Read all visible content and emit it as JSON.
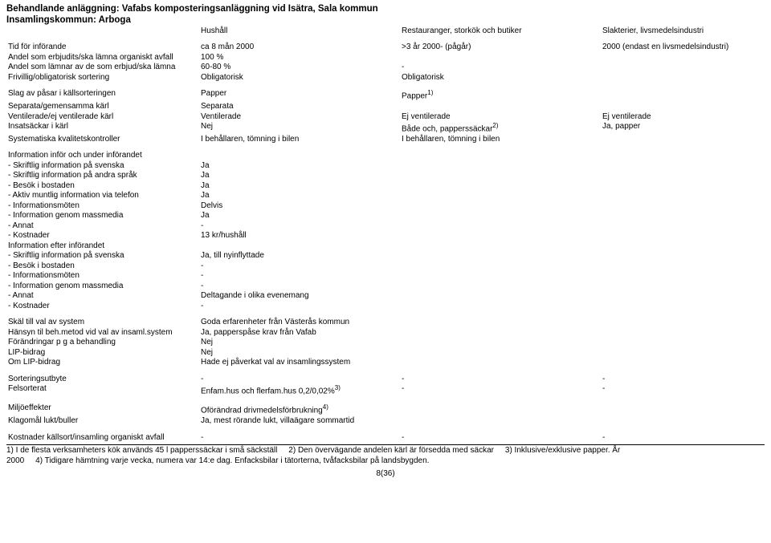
{
  "header": {
    "facility_line": "Behandlande anläggning: Vafabs komposteringsanläggning vid Isätra, Sala kommun",
    "municipality_line": "Insamlingskommun: Arboga"
  },
  "colheads": {
    "hh": "Hushåll",
    "rest": "Restauranger, storkök och butiker",
    "slak": "Slakterier, livsmedelsindustri"
  },
  "block1": {
    "r0": {
      "label": "Tid för införande",
      "hh": "ca 8 mån   2000",
      "rest": ">3 år   2000- (pågår)",
      "slak": "2000 (endast en livsmedelsindustri)"
    },
    "r1": {
      "label": "Andel som erbjudits/ska lämna organiskt avfall",
      "hh": "100 %",
      "rest": "",
      "slak": ""
    },
    "r2": {
      "label": "Andel som lämnar av de som erbjud/ska lämna",
      "hh": "60-80 %",
      "rest": "-",
      "slak": ""
    },
    "r3": {
      "label": "Frivillig/obligatorisk sortering",
      "hh": "Obligatorisk",
      "rest": "Obligatorisk",
      "slak": ""
    }
  },
  "block2": {
    "r0": {
      "label": "Slag av påsar i källsorteringen",
      "hh": "Papper",
      "rest_pre": "Papper",
      "rest_sup": "1)",
      "slak": ""
    },
    "r1": {
      "label": "Separata/gemensamma kärl",
      "hh": "Separata",
      "rest": "",
      "slak": ""
    },
    "r2": {
      "label": "Ventilerade/ej ventilerade kärl",
      "hh": "Ventilerade",
      "rest": "Ej ventilerade",
      "slak": "Ej ventilerade"
    },
    "r3": {
      "label": "Insatsäckar i kärl",
      "hh": "Nej",
      "rest_pre": "Både och, papperssäckar",
      "rest_sup": "2)",
      "slak": "Ja, papper"
    },
    "r4": {
      "label": "Systematiska kvalitetskontroller",
      "hh": "I behållaren, tömning i bilen",
      "rest": "I behållaren, tömning i bilen",
      "slak": ""
    }
  },
  "block3": {
    "title": "Information inför och under införandet",
    "rows": {
      "r0": {
        "label": "- Skriftlig information på svenska",
        "hh": "Ja"
      },
      "r1": {
        "label": "- Skriftlig information på andra språk",
        "hh": "Ja"
      },
      "r2": {
        "label": "- Besök i bostaden",
        "hh": "Ja"
      },
      "r3": {
        "label": "- Aktiv muntlig information via telefon",
        "hh": "Ja"
      },
      "r4": {
        "label": "- Informationsmöten",
        "hh": "Delvis"
      },
      "r5": {
        "label": "- Information genom massmedia",
        "hh": "Ja"
      },
      "r6": {
        "label": "- Annat",
        "hh": "-"
      },
      "r7": {
        "label": "- Kostnader",
        "hh": "13 kr/hushåll"
      }
    },
    "after_title": "Information efter införandet",
    "after": {
      "r0": {
        "label": "- Skriftlig information på svenska",
        "hh": "Ja, till nyinflyttade"
      },
      "r1": {
        "label": "- Besök i bostaden",
        "hh": "-"
      },
      "r2": {
        "label": "- Informationsmöten",
        "hh": "-"
      },
      "r3": {
        "label": "- Information genom massmedia",
        "hh": "-"
      },
      "r4": {
        "label": "- Annat",
        "hh": "Deltagande i olika evenemang"
      },
      "r5": {
        "label": "- Kostnader",
        "hh": "-"
      }
    }
  },
  "block4": {
    "r0": {
      "label": "Skäl till val av system",
      "hh": "Goda erfarenheter från Västerås kommun"
    },
    "r1": {
      "label": "Hänsyn til beh.metod vid val av insaml.system",
      "hh": "Ja, papperspåse krav från Vafab"
    },
    "r2": {
      "label": "Förändringar p g a behandling",
      "hh": "Nej"
    },
    "r3": {
      "label": "LIP-bidrag",
      "hh": "Nej"
    },
    "r4": {
      "label": "Om LIP-bidrag",
      "hh": "Hade ej påverkat val av insamlingssystem"
    }
  },
  "block5": {
    "r0": {
      "label": "Sorteringsutbyte",
      "hh": "-",
      "rest": "-",
      "slak": "-"
    },
    "r1": {
      "label": "Felsorterat",
      "hh_pre": "Enfam.hus och flerfam.hus 0,2/0,02%",
      "hh_sup": "3)",
      "rest": "-",
      "slak": "-"
    }
  },
  "block6": {
    "r0": {
      "label": "Miljöeffekter",
      "hh_pre": "Oförändrad drivmedelsförbrukning",
      "hh_sup": "4)"
    },
    "r1": {
      "label": "Klagomål lukt/buller",
      "hh": "Ja, mest rörande lukt, villaägare sommartid"
    }
  },
  "block7": {
    "r0": {
      "label": "Kostnader källsort/insamling organiskt avfall",
      "hh": "-",
      "rest": "-",
      "slak": "-"
    }
  },
  "footnotes": {
    "line1a": "1) I de flesta verksamheters kök används 45 l papperssäckar i små säckställ",
    "line1b": "2) Den övervägande andelen kärl är försedda med säckar",
    "line1c": "3) Inklusive/exklusive papper. År",
    "line2a": "2000",
    "line2b": "4) Tidigare hämtning varje vecka, numera var 14:e dag. Enfacksbilar i tätorterna, tvåfacksbilar på landsbygden."
  },
  "page_num": "8(36)"
}
